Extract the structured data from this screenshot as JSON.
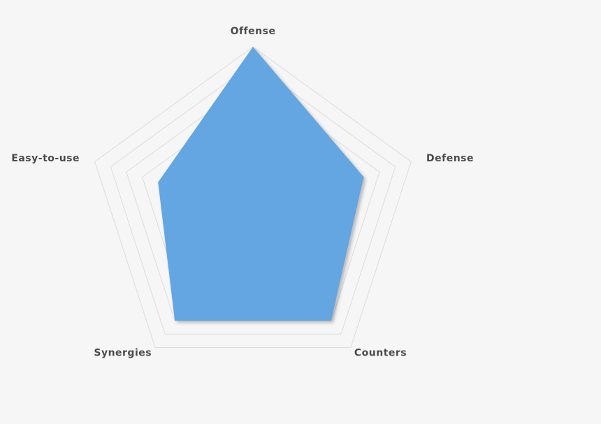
{
  "chart_data": {
    "type": "radar",
    "categories": [
      "Offense",
      "Defense",
      "Counters",
      "Synergies",
      "Easy-to-use"
    ],
    "values": [
      10,
      7,
      8,
      8,
      6
    ],
    "color": "#64a6e2",
    "rlim": [
      0,
      10
    ],
    "rticks": [
      1,
      2,
      3,
      4,
      5,
      6,
      7,
      8,
      9,
      10
    ],
    "grid": true
  }
}
